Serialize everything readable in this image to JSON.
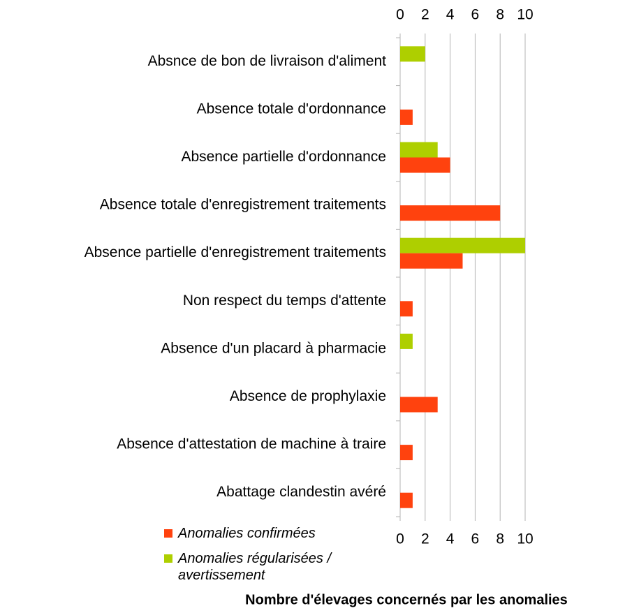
{
  "chart_data": {
    "type": "bar",
    "orientation": "horizontal",
    "xlabel": "Nombre d'élevages concernés par les anomalies",
    "categories": [
      "Absnce de bon de livraison d'aliment",
      "Absence totale d'ordonnance",
      "Absence partielle d'ordonnance",
      "Absence totale d'enregistrement traitements",
      "Absence partielle d'enregistrement traitements",
      "Non respect du temps d'attente",
      "Absence d'un placard à pharmacie",
      "Absence de prophylaxie",
      "Absence d'attestation de machine à traire",
      "Abattage clandestin avéré"
    ],
    "series": [
      {
        "name": "Anomalies confirmées",
        "color": "#ff420e",
        "values": [
          0,
          1,
          4,
          8,
          5,
          1,
          0,
          3,
          1,
          1
        ]
      },
      {
        "name": "Anomalies régularisées / avertissement",
        "color": "#aecf00",
        "values": [
          2,
          0,
          3,
          0,
          10,
          0,
          1,
          0,
          0,
          0
        ]
      }
    ],
    "xlim": [
      0,
      10
    ],
    "xticks": [
      0,
      2,
      4,
      6,
      8,
      10
    ],
    "grid": true
  }
}
